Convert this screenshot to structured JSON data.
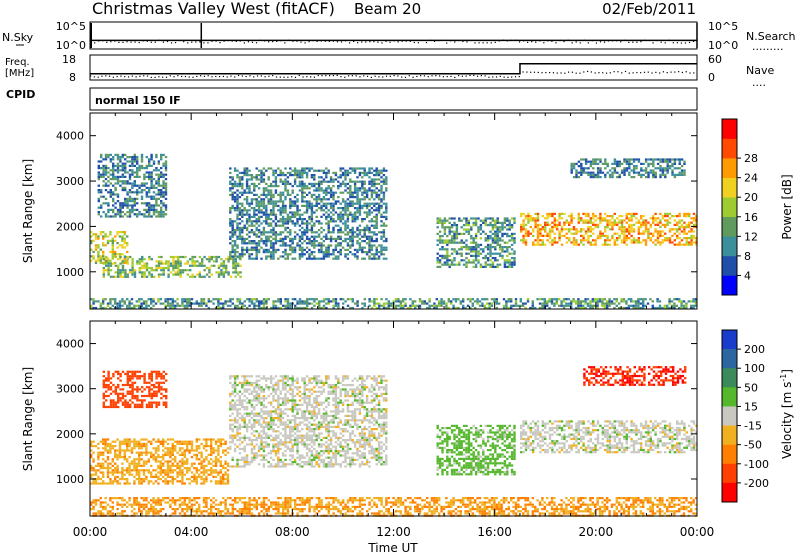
{
  "header": {
    "title": "Christmas Valley West (fitACF)",
    "beam": "Beam 20",
    "date": "02/Feb/2011"
  },
  "noise_panel": {
    "left_label": "N.Sky",
    "right_label": "N.Search",
    "left_ticks": [
      "10^5",
      "10^0"
    ],
    "right_ticks": [
      "10^5",
      "10^0"
    ],
    "yscale": "log"
  },
  "freq_panel": {
    "left_label_1": "Freq.",
    "left_label_2": "[MHz]",
    "right_label": "Nave",
    "left_ticks": [
      "18",
      "8"
    ],
    "right_ticks": [
      "60",
      "0"
    ],
    "freq_ylim": [
      8,
      18
    ],
    "nave_ylim": [
      0,
      60
    ]
  },
  "cpid": {
    "label": "CPID",
    "value": "normal 150 IF"
  },
  "power_panel": {
    "ylabel": "Slant Range [km]",
    "yticks": [
      "1000",
      "2000",
      "3000",
      "4000"
    ],
    "ylim": [
      180,
      4500
    ],
    "colorbar_label": "Power [dB]",
    "colorbar_ticks": [
      "4",
      "8",
      "12",
      "16",
      "20",
      "24",
      "28"
    ],
    "colorbar_colors": [
      "#0000ff",
      "#1f4fa8",
      "#3a8f9a",
      "#5f9a5f",
      "#9ccc30",
      "#f0d020",
      "#ff9a00",
      "#ff4a00",
      "#ff0000"
    ]
  },
  "velocity_panel": {
    "ylabel": "Slant Range [km]",
    "yticks": [
      "1000",
      "2000",
      "3000",
      "4000"
    ],
    "ylim": [
      180,
      4500
    ],
    "colorbar_label": "Velocity [m s",
    "colorbar_label_sup": "-1",
    "colorbar_label_end": "]",
    "colorbar_ticks": [
      "200",
      "100",
      "50",
      "15",
      "-15",
      "-50",
      "-100",
      "-200"
    ],
    "colorbar_colors": [
      "#1a3ccc",
      "#2c66a0",
      "#3c8a5a",
      "#55b82c",
      "#c8c8c0",
      "#f0b020",
      "#ff8000",
      "#ff4000",
      "#ff0000"
    ]
  },
  "time_axis": {
    "label": "Time UT",
    "ticks": [
      "00:00",
      "04:00",
      "08:00",
      "12:00",
      "16:00",
      "20:00",
      "00:00"
    ],
    "xlim_hours": [
      0,
      24
    ]
  },
  "chart_data": {
    "type": "heatmap",
    "title": "Christmas Valley West (fitACF)",
    "xlabel": "Time UT",
    "ylabel": "Slant Range [km]",
    "xlim_hours": [
      0,
      24
    ],
    "ylim_km": [
      180,
      4500
    ],
    "noise": {
      "sky_level": 40,
      "search_level": 30,
      "yscale": "log"
    },
    "frequency_mhz": {
      "times_h": [
        0,
        17,
        17,
        24
      ],
      "values": [
        10.5,
        10.5,
        14.5,
        14.5
      ]
    },
    "nave": {
      "before_17h": 10,
      "after_17h": 20
    },
    "power_regions": [
      {
        "t": [
          0.0,
          1.5
        ],
        "r": [
          1200,
          1900
        ],
        "level_db": 18
      },
      {
        "t": [
          0.5,
          6.0
        ],
        "r": [
          900,
          1350
        ],
        "level_db": 14
      },
      {
        "t": [
          0.3,
          3.0
        ],
        "r": [
          2200,
          3600
        ],
        "level_db": 8
      },
      {
        "t": [
          5.5,
          11.7
        ],
        "r": [
          1300,
          3300
        ],
        "level_db": 8
      },
      {
        "t": [
          13.7,
          16.8
        ],
        "r": [
          1100,
          2200
        ],
        "level_db": 10
      },
      {
        "t": [
          17.0,
          24.0
        ],
        "r": [
          1600,
          2300
        ],
        "level_db": 22
      },
      {
        "t": [
          19.0,
          23.5
        ],
        "r": [
          3100,
          3500
        ],
        "level_db": 8
      },
      {
        "t": [
          0.0,
          24.0
        ],
        "r": [
          180,
          420
        ],
        "level_db": 10
      }
    ],
    "velocity_regions": [
      {
        "t": [
          0.0,
          5.5
        ],
        "r": [
          900,
          1900
        ],
        "velocity_ms": -40
      },
      {
        "t": [
          0.5,
          3.0
        ],
        "r": [
          2600,
          3400
        ],
        "velocity_ms": -150
      },
      {
        "t": [
          5.5,
          11.7
        ],
        "r": [
          1300,
          3300
        ],
        "velocity_ms": 0
      },
      {
        "t": [
          13.7,
          16.8
        ],
        "r": [
          1100,
          2200
        ],
        "velocity_ms": 30
      },
      {
        "t": [
          17.0,
          24.0
        ],
        "r": [
          1600,
          2300
        ],
        "velocity_ms": 0
      },
      {
        "t": [
          19.5,
          23.5
        ],
        "r": [
          3100,
          3500
        ],
        "velocity_ms": -200
      },
      {
        "t": [
          0.0,
          24.0
        ],
        "r": [
          180,
          600
        ],
        "velocity_ms": -50
      }
    ]
  }
}
